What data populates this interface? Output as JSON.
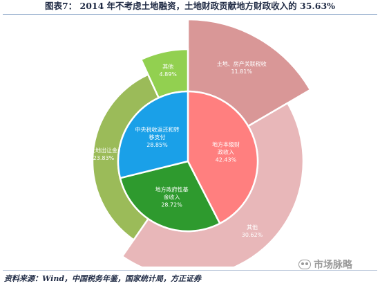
{
  "figure": {
    "title": "图表7：  2014 年不考虑土地融资，土地财政贡献地方财政收入的 35.63%",
    "source": "资料来源：Wind，中国税务年鉴，国家统计局，方正证券",
    "watermark": "市场脉略",
    "watermark_icon": "wechat-icon"
  },
  "chart_data": {
    "type": "pie",
    "rings": [
      {
        "name": "",
        "slices": [
          {
            "label": "地方本级财政收入",
            "lines": [
              "地方本级财",
              "政收入"
            ],
            "value": 42.43,
            "display": "42.43%",
            "color": "#ff7f7f"
          },
          {
            "label": "地方政府性基金收入",
            "lines": [
              "地方政府性基",
              "金收入"
            ],
            "value": 28.72,
            "display": "28.72%",
            "color": "#2e9a2e"
          },
          {
            "label": "中央税收返还和转移支付",
            "lines": [
              "中央税收返还和转",
              "移支付"
            ],
            "value": 28.85,
            "display": "28.85%",
            "color": "#1aa0e8"
          }
        ]
      },
      {
        "name": "",
        "slices": [
          {
            "label": "土地、房产关联税收",
            "lines": [
              "土地、房产关联税收"
            ],
            "value": 11.81,
            "display": "11.81%",
            "color": "#d99797"
          },
          {
            "label": "其他",
            "lines": [
              "其他"
            ],
            "value": 30.62,
            "display": "30.62%",
            "color": "#e8b7b9"
          },
          {
            "label": "土地出让金",
            "lines": [
              "土地出让金"
            ],
            "value": 23.83,
            "display": "23.83%",
            "color": "#9bbb59"
          },
          {
            "label": "其他",
            "lines": [
              "其他"
            ],
            "value": 4.89,
            "display": "4.89%",
            "color": "#92d050"
          }
        ]
      }
    ],
    "legend": false,
    "grid": false
  }
}
